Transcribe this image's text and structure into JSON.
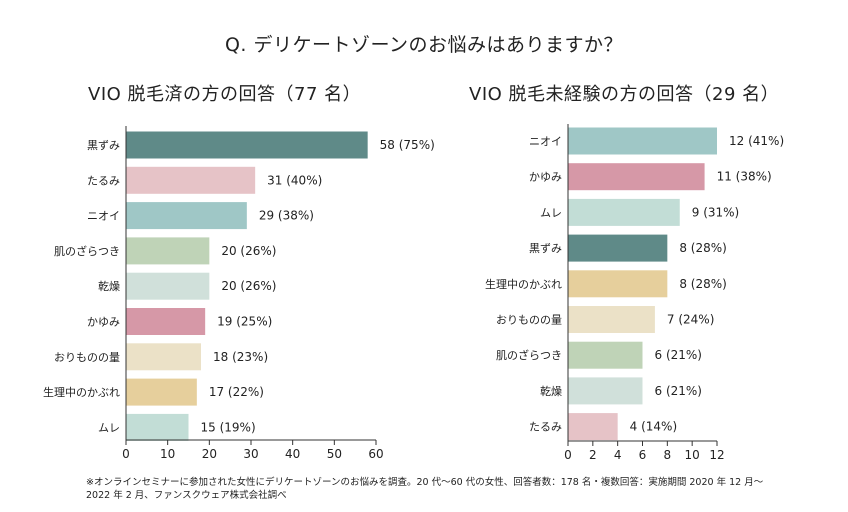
{
  "title": "Q. デリケートゾーンのお悩みはありますか？",
  "footnote": "※オンラインセミナーに参加された女性にデリケートゾーンのお悩みを調査。20 代〜60 代の女性、回答者数：178 名・複数回答：実施期間 2020 年 12 月〜 2022 年 2 月、ファンスクウェア株式会社調べ",
  "colors": {
    "黒ずみ": "#5f8a88",
    "たるみ": "#e6c3c7",
    "ニオイ": "#9fc7c6",
    "肌のざらつき": "#bfd3b7",
    "乾燥": "#d0e0da",
    "かゆみ": "#d698a7",
    "おりものの量": "#ebe1c7",
    "生理中のかぶれ": "#e6cf9c",
    "ムレ": "#c2ddd6"
  },
  "chart_data": [
    {
      "type": "bar",
      "orientation": "horizontal",
      "title": "VIO 脱毛済の方の回答（77 名）",
      "categories": [
        "黒ずみ",
        "たるみ",
        "ニオイ",
        "肌のざらつき",
        "乾燥",
        "かゆみ",
        "おりものの量",
        "生理中のかぶれ",
        "ムレ"
      ],
      "values": [
        58,
        31,
        29,
        20,
        20,
        19,
        18,
        17,
        15
      ],
      "labels": [
        "58 (75%)",
        "31 (40%)",
        "29 (38%)",
        "20 (26%)",
        "20 (26%)",
        "19 (25%)",
        "18 (23%)",
        "17 (22%)",
        "15 (19%)"
      ],
      "xlim": [
        0,
        60
      ],
      "xticks": [
        0,
        10,
        20,
        30,
        40,
        50,
        60
      ]
    },
    {
      "type": "bar",
      "orientation": "horizontal",
      "title": "VIO 脱毛未経験の方の回答（29 名）",
      "categories": [
        "ニオイ",
        "かゆみ",
        "ムレ",
        "黒ずみ",
        "生理中のかぶれ",
        "おりものの量",
        "肌のざらつき",
        "乾燥",
        "たるみ"
      ],
      "values": [
        12,
        11,
        9,
        8,
        8,
        7,
        6,
        6,
        4
      ],
      "labels": [
        "12 (41%)",
        "11 (38%)",
        "9 (31%)",
        "8 (28%)",
        "8 (28%)",
        "7 (24%)",
        "6 (21%)",
        "6 (21%)",
        "4 (14%)"
      ],
      "xlim": [
        0,
        12
      ],
      "xticks": [
        0,
        2,
        4,
        6,
        8,
        10,
        12
      ]
    }
  ]
}
